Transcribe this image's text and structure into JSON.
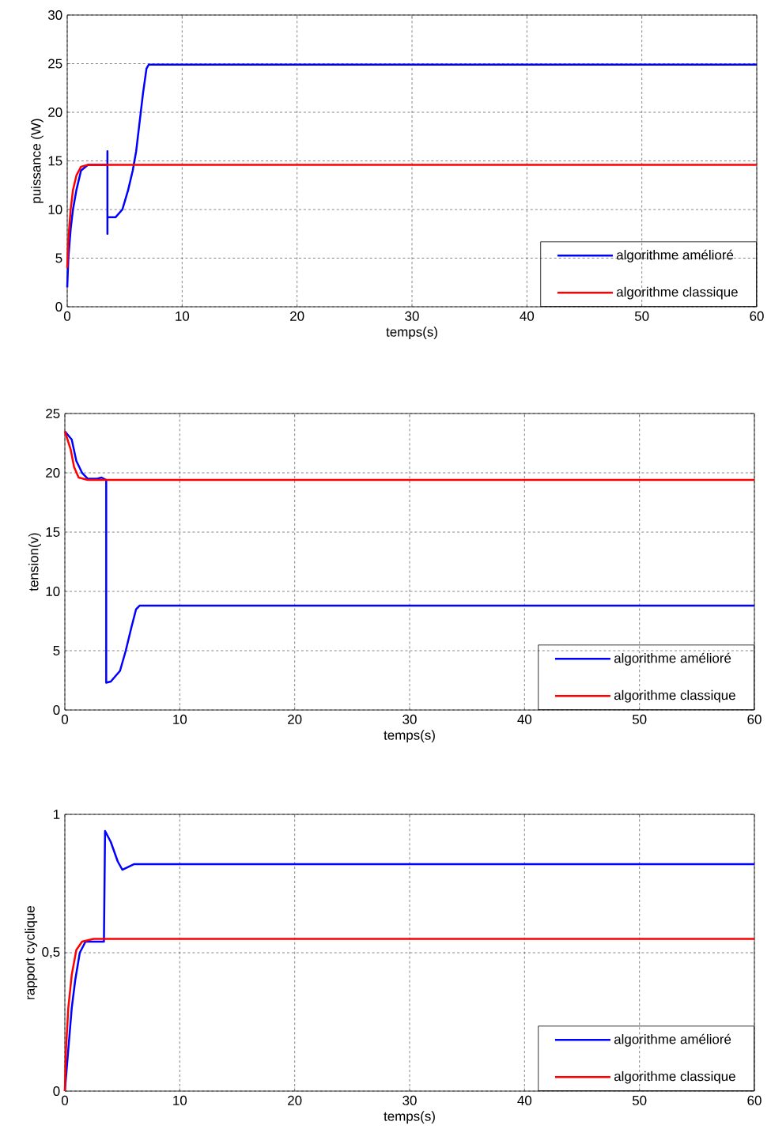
{
  "chart_data": [
    {
      "type": "line",
      "xlabel": "temps(s)",
      "ylabel": "puissance (W)",
      "xlim": [
        0,
        60
      ],
      "ylim": [
        0,
        30
      ],
      "xticks": [
        0,
        10,
        20,
        30,
        40,
        50,
        60
      ],
      "yticks": [
        0,
        5,
        10,
        15,
        20,
        25,
        30
      ],
      "grid": true,
      "legend": "bottom right",
      "line_style": "solid",
      "series": [
        {
          "name": "algorithme amélioré",
          "color": "#0000ff",
          "x": [
            0,
            0.1,
            0.3,
            0.5,
            0.8,
            1.2,
            1.8,
            3.5,
            3.5,
            3.5,
            3.5,
            4.2,
            4.8,
            5.3,
            5.7,
            6.0,
            6.3,
            6.6,
            6.9,
            7.1,
            60
          ],
          "values": [
            2,
            5,
            8,
            10,
            12,
            14,
            14.6,
            14.6,
            16,
            7.5,
            9.2,
            9.2,
            10,
            12,
            14,
            16,
            19,
            22,
            24.5,
            24.9,
            24.9
          ]
        },
        {
          "name": "algorithme classique",
          "color": "#ff0000",
          "x": [
            0,
            0.1,
            0.3,
            0.5,
            0.8,
            1.2,
            1.8,
            60
          ],
          "values": [
            4,
            7,
            10,
            12,
            13.5,
            14.4,
            14.6,
            14.6
          ]
        }
      ]
    },
    {
      "type": "line",
      "xlabel": "temps(s)",
      "ylabel": "tension(v)",
      "xlim": [
        0,
        60
      ],
      "ylim": [
        0,
        25
      ],
      "xticks": [
        0,
        10,
        20,
        30,
        40,
        50,
        60
      ],
      "yticks": [
        0,
        5,
        10,
        15,
        20,
        25
      ],
      "grid": true,
      "legend": "bottom right",
      "line_style": "solid",
      "series": [
        {
          "name": "algorithme amélioré",
          "color": "#0000ff",
          "x": [
            0,
            0.6,
            1,
            1.5,
            2,
            2.8,
            3.2,
            3.6,
            3.6,
            4,
            4.8,
            5.3,
            5.8,
            6.2,
            6.5,
            60
          ],
          "values": [
            23.5,
            22.8,
            21,
            20,
            19.5,
            19.5,
            19.6,
            19.4,
            2.3,
            2.4,
            3.3,
            5,
            7,
            8.5,
            8.8,
            8.8
          ]
        },
        {
          "name": "algorithme classique",
          "color": "#ff0000",
          "x": [
            0,
            0.5,
            0.8,
            1.2,
            2,
            60
          ],
          "values": [
            23.5,
            22,
            20.5,
            19.6,
            19.4,
            19.4
          ]
        }
      ]
    },
    {
      "type": "line",
      "xlabel": "temps(s)",
      "ylabel": "rapport cyclique",
      "xlim": [
        0,
        60
      ],
      "ylim": [
        0,
        1
      ],
      "xticks": [
        0,
        10,
        20,
        30,
        40,
        50,
        60
      ],
      "yticks": [
        0,
        {
          "value": 0.5,
          "label": "0,5"
        },
        1
      ],
      "grid": true,
      "legend": "bottom right",
      "line_style": "solid",
      "series": [
        {
          "name": "algorithme amélioré",
          "color": "#0000ff",
          "x": [
            0,
            0.3,
            0.6,
            0.9,
            1.3,
            1.8,
            3.4,
            3.5,
            4,
            4.6,
            5,
            5.5,
            6,
            60
          ],
          "values": [
            0,
            0.15,
            0.3,
            0.4,
            0.5,
            0.54,
            0.54,
            0.94,
            0.9,
            0.83,
            0.8,
            0.81,
            0.82,
            0.82
          ]
        },
        {
          "name": "algorithme classique",
          "color": "#ff0000",
          "x": [
            0,
            0.1,
            0.3,
            0.6,
            1,
            1.5,
            2.5,
            60
          ],
          "values": [
            0,
            0.15,
            0.3,
            0.42,
            0.51,
            0.54,
            0.55,
            0.55
          ]
        }
      ]
    }
  ]
}
